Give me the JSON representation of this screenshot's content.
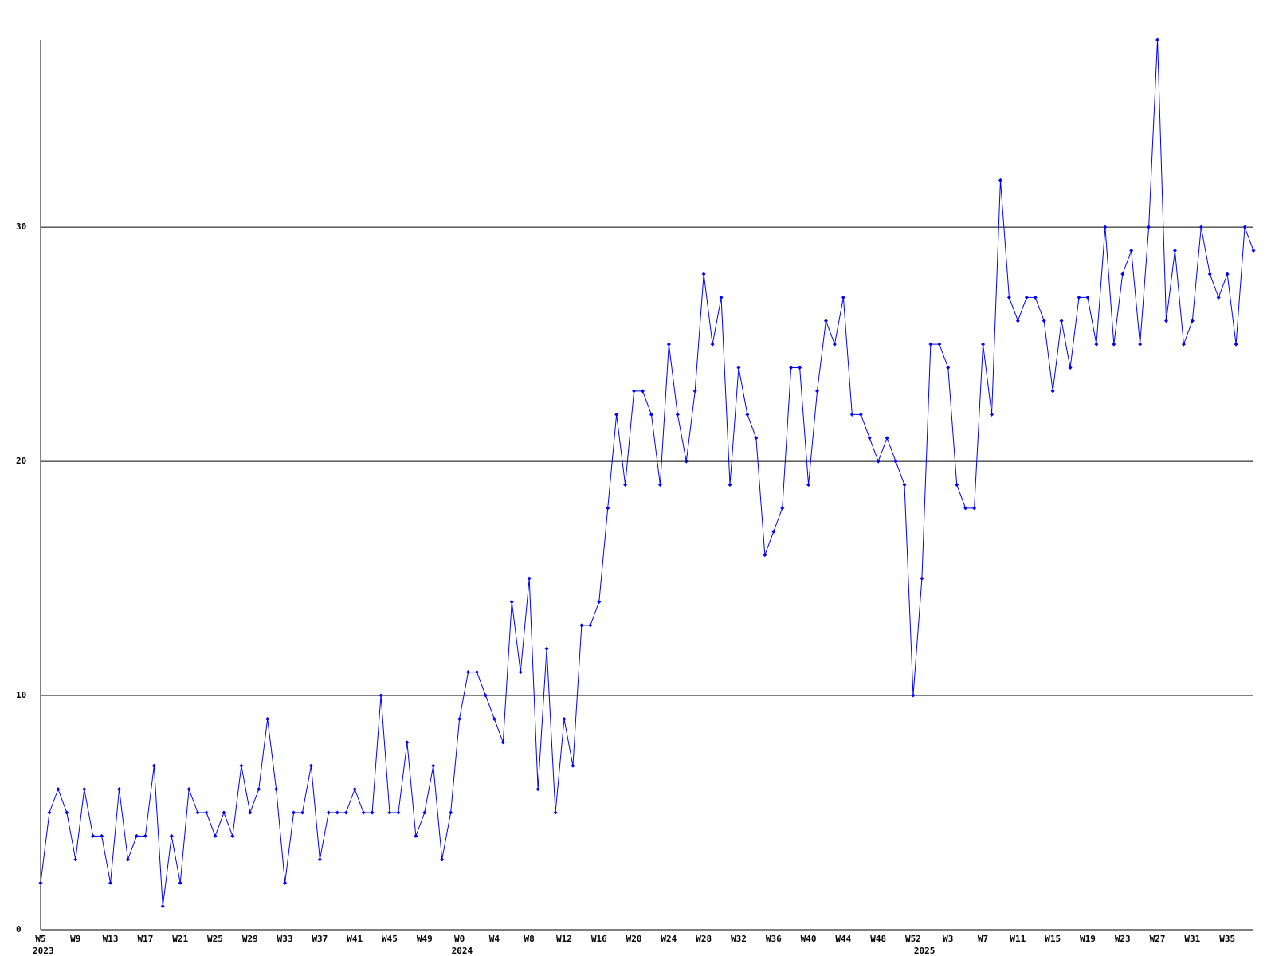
{
  "chart_data": {
    "type": "line",
    "categories": [
      "W5",
      null,
      null,
      null,
      "W9",
      null,
      null,
      null,
      "W13",
      null,
      null,
      null,
      "W17",
      null,
      null,
      null,
      "W21",
      null,
      null,
      null,
      "W25",
      null,
      null,
      null,
      "W29",
      null,
      null,
      null,
      "W33",
      null,
      null,
      null,
      "W37",
      null,
      null,
      null,
      "W41",
      null,
      null,
      null,
      "W45",
      null,
      null,
      null,
      "W49",
      null,
      null,
      null,
      "W0",
      null,
      null,
      null,
      "W4",
      null,
      null,
      null,
      "W8",
      null,
      null,
      null,
      "W12",
      null,
      null,
      null,
      "W16",
      null,
      null,
      null,
      "W20",
      null,
      null,
      null,
      "W24",
      null,
      null,
      null,
      "W28",
      null,
      null,
      null,
      "W32",
      null,
      null,
      null,
      "W36",
      null,
      null,
      null,
      "W40",
      null,
      null,
      null,
      "W44",
      null,
      null,
      null,
      "W48",
      null,
      null,
      null,
      "W52",
      null,
      null,
      null,
      "W3",
      null,
      null,
      null,
      "W7",
      null,
      null,
      null,
      "W11",
      null,
      null,
      null,
      "W15",
      null,
      null,
      null,
      "W19",
      null,
      null,
      null,
      "W23",
      null,
      null,
      null,
      "W27",
      null,
      null,
      null,
      "W31",
      null,
      null,
      null,
      "W35",
      null,
      null,
      null
    ],
    "year_labels": [
      "2023",
      null,
      null,
      null,
      null,
      null,
      null,
      null,
      null,
      null,
      null,
      null,
      null,
      null,
      null,
      null,
      null,
      null,
      null,
      null,
      null,
      null,
      null,
      null,
      null,
      null,
      null,
      null,
      null,
      null,
      null,
      null,
      null,
      null,
      null,
      null,
      null,
      null,
      null,
      null,
      null,
      null,
      null,
      null,
      null,
      null,
      null,
      null,
      "2024",
      null,
      null,
      null,
      null,
      null,
      null,
      null,
      null,
      null,
      null,
      null,
      null,
      null,
      null,
      null,
      null,
      null,
      null,
      null,
      null,
      null,
      null,
      null,
      null,
      null,
      null,
      null,
      null,
      null,
      null,
      null,
      null,
      null,
      null,
      null,
      null,
      null,
      null,
      null,
      null,
      null,
      null,
      null,
      null,
      null,
      null,
      null,
      null,
      null,
      null,
      null,
      null,
      "2025",
      null,
      null,
      null,
      null,
      null,
      null,
      null,
      null,
      null,
      null,
      null,
      null,
      null,
      null,
      null,
      null,
      null,
      null,
      null,
      null,
      null,
      null,
      null,
      null,
      null,
      null,
      null,
      null,
      null,
      null,
      null,
      null,
      null,
      null,
      null,
      null,
      null,
      null
    ],
    "values": [
      2,
      5,
      6,
      5,
      3,
      6,
      4,
      4,
      2,
      6,
      3,
      4,
      4,
      7,
      1,
      4,
      2,
      6,
      5,
      5,
      4,
      5,
      4,
      7,
      5,
      6,
      9,
      6,
      2,
      5,
      5,
      7,
      3,
      5,
      5,
      5,
      6,
      5,
      5,
      10,
      5,
      5,
      8,
      4,
      5,
      7,
      3,
      5,
      9,
      11,
      11,
      10,
      9,
      8,
      14,
      11,
      15,
      6,
      12,
      5,
      9,
      7,
      13,
      13,
      14,
      18,
      22,
      19,
      23,
      23,
      22,
      19,
      25,
      22,
      20,
      23,
      28,
      25,
      27,
      19,
      24,
      22,
      21,
      16,
      17,
      18,
      24,
      24,
      19,
      23,
      26,
      25,
      27,
      22,
      22,
      21,
      20,
      21,
      20,
      19,
      10,
      15,
      25,
      25,
      24,
      19,
      18,
      18,
      25,
      22,
      32,
      27,
      26,
      27,
      27,
      26,
      23,
      26,
      24,
      27,
      27,
      25,
      30,
      25,
      28,
      29,
      25,
      30,
      38,
      26,
      29,
      25,
      26,
      30,
      28,
      27,
      28,
      25,
      30,
      29
    ],
    "color": "#0000ff",
    "ylim": [
      0,
      38
    ],
    "yticks": [
      0,
      10,
      20,
      30
    ],
    "grid": true
  }
}
